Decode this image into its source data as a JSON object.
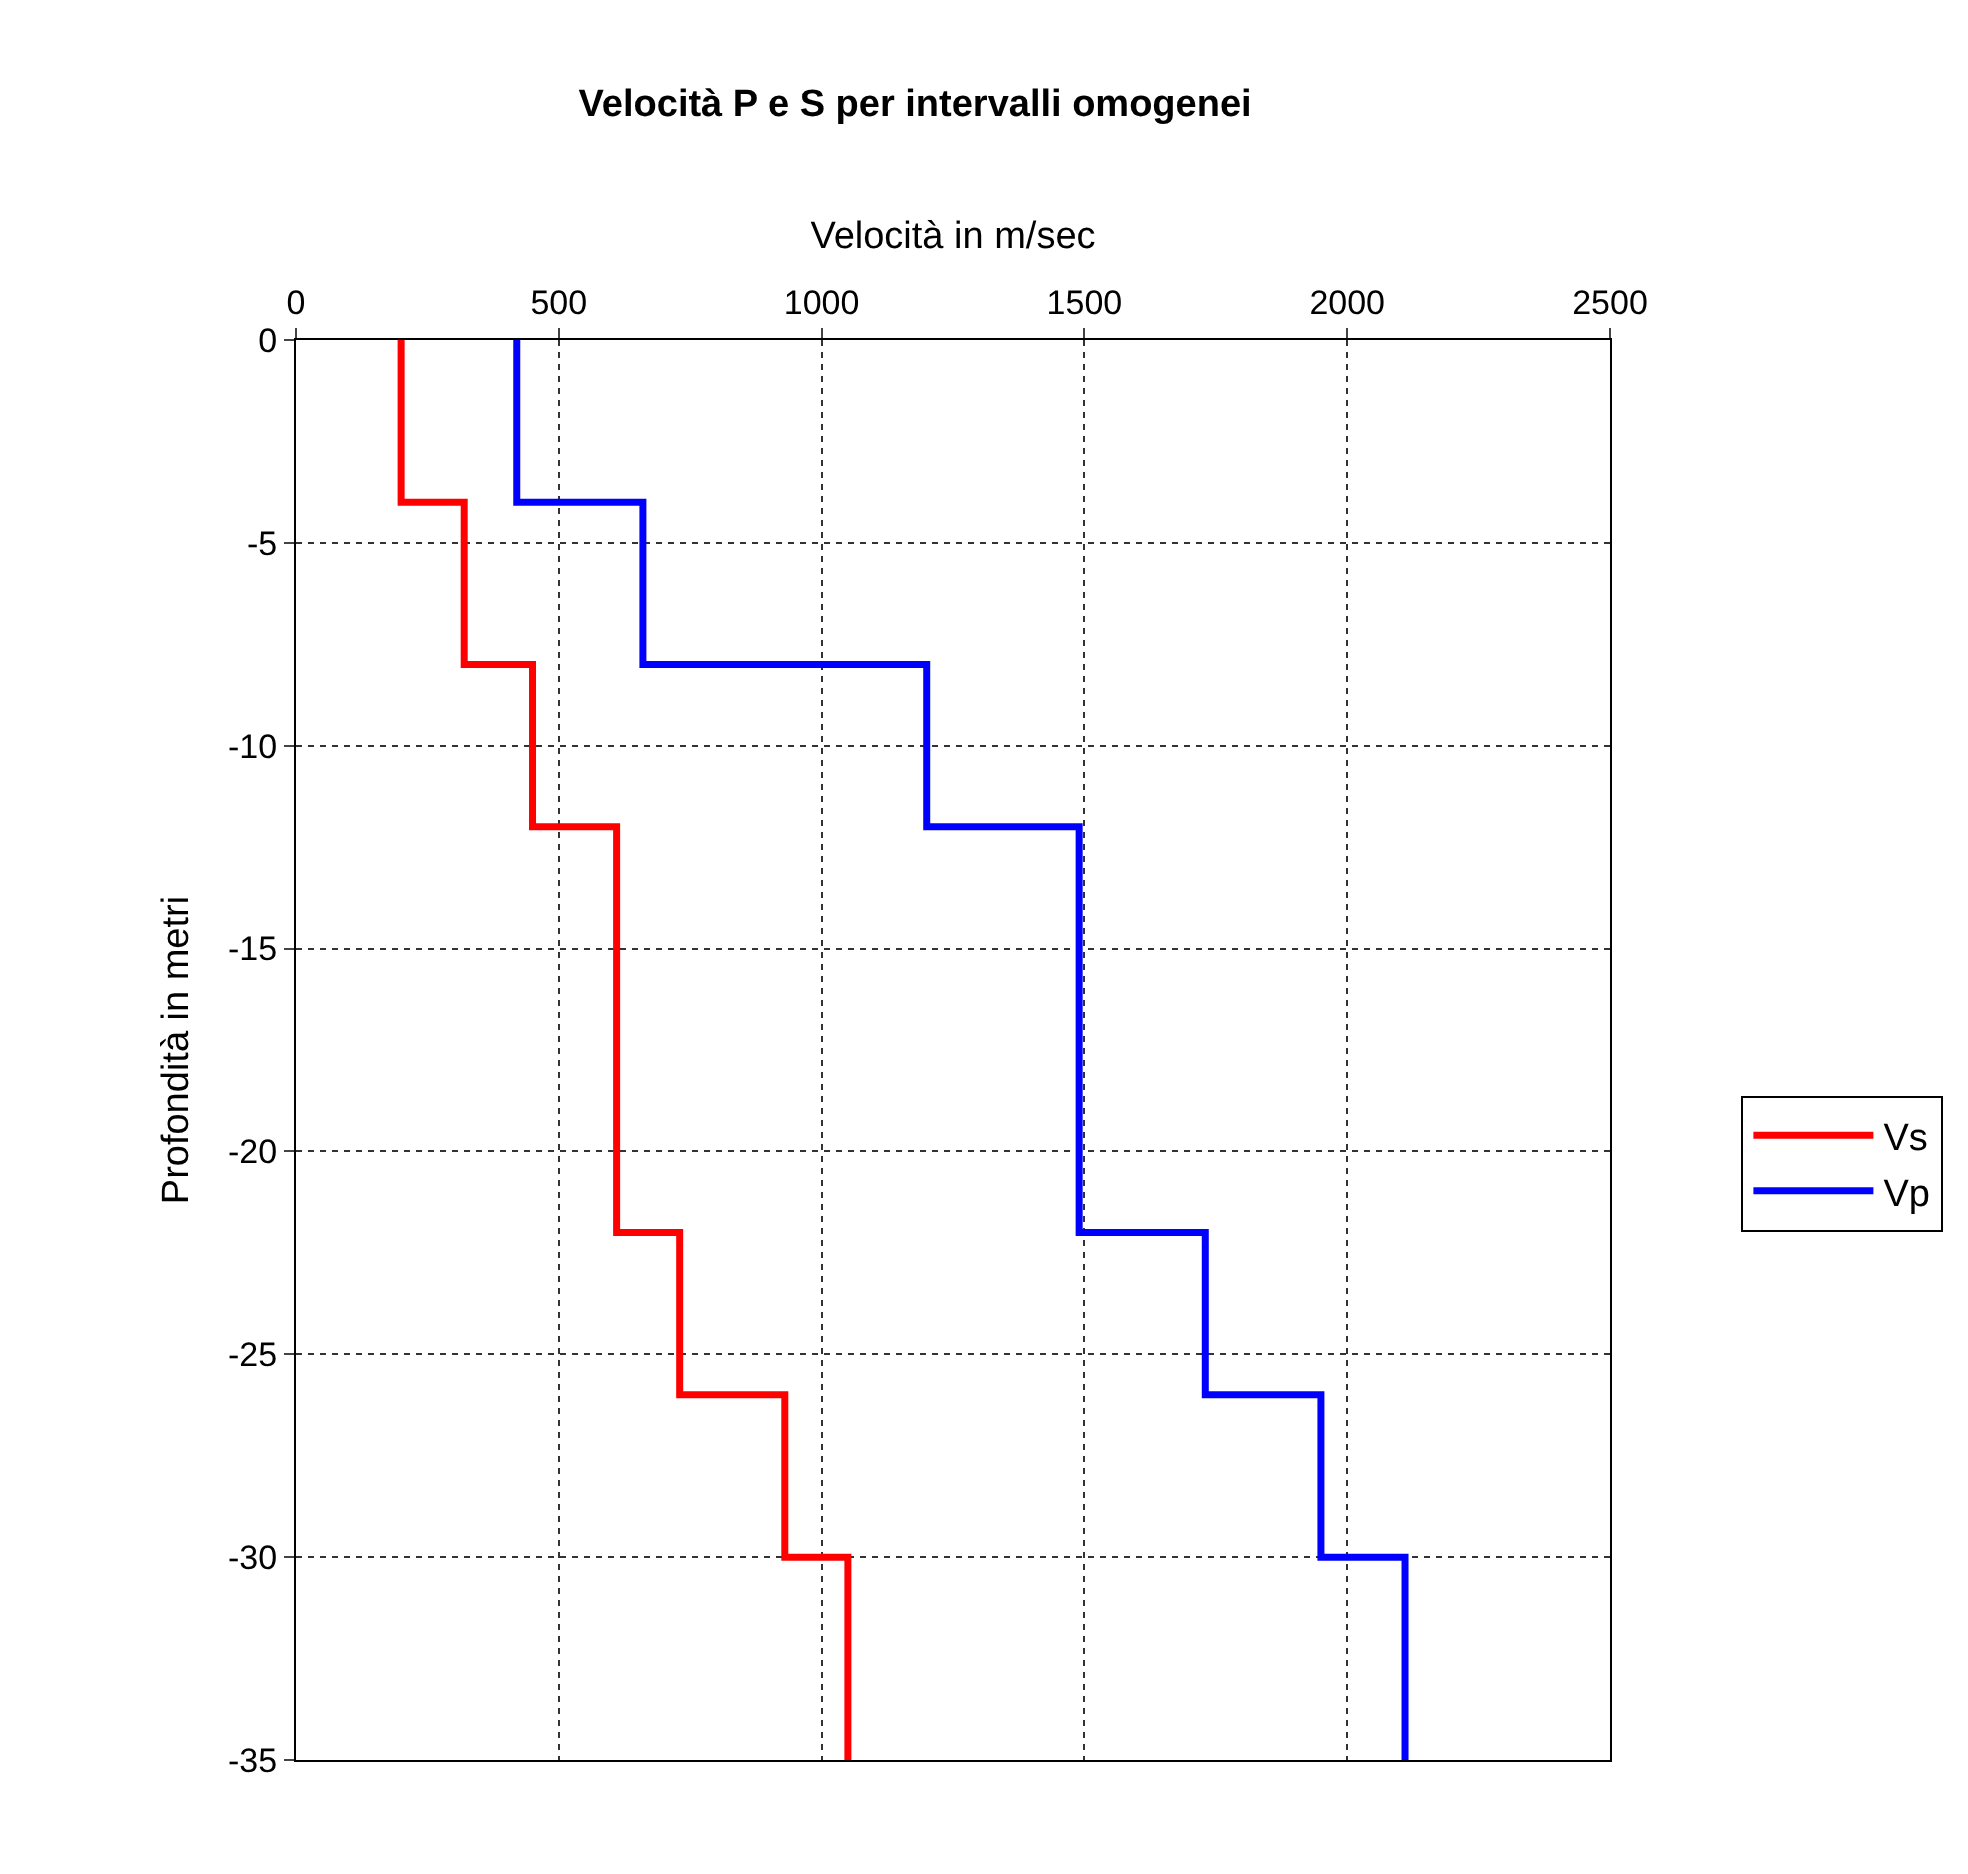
{
  "chart_data": {
    "type": "line",
    "title": "Velocità P e S per intervalli omogenei",
    "xlabel": "Velocità in m/sec",
    "ylabel": "Profondità in metri",
    "series": [
      {
        "name": "Vs",
        "color": "#ff0000",
        "x": [
          200,
          200,
          320,
          320,
          450,
          450,
          610,
          610,
          730,
          730,
          930,
          930,
          1050,
          1050
        ],
        "values": [
          0,
          -4,
          -4,
          -8,
          -8,
          -12,
          -12,
          -22,
          -22,
          -26,
          -26,
          -30,
          -30,
          -35
        ]
      },
      {
        "name": "Vp",
        "color": "#0000ff",
        "x": [
          420,
          420,
          660,
          660,
          1200,
          1200,
          1490,
          1490,
          1730,
          1730,
          1950,
          1950,
          2110,
          2110
        ],
        "values": [
          0,
          -4,
          -4,
          -8,
          -8,
          -12,
          -12,
          -22,
          -22,
          -26,
          -26,
          -30,
          -30,
          -35
        ]
      }
    ],
    "xlim": [
      0,
      2500
    ],
    "xticks": [
      0,
      500,
      1000,
      1500,
      2000,
      2500
    ],
    "ylim": [
      -35,
      0
    ],
    "yticks": [
      0,
      -5,
      -10,
      -15,
      -20,
      -25,
      -30,
      -35
    ],
    "grid": true,
    "legend": "right",
    "line_style": "solid",
    "marker": "none"
  }
}
